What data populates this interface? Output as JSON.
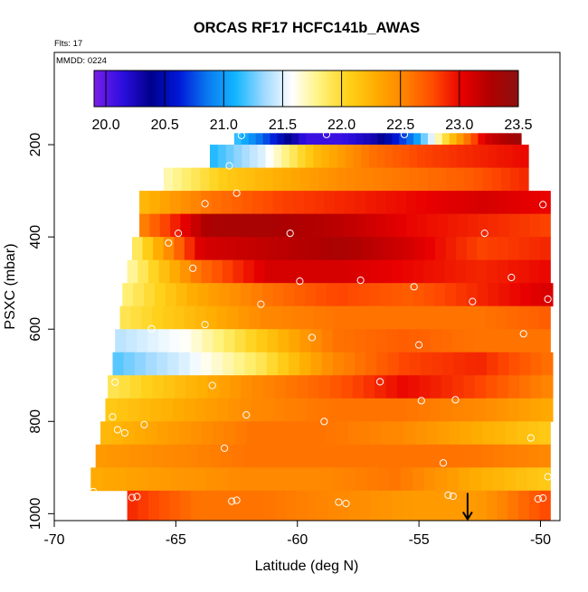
{
  "chart_data": {
    "type": "heatmap",
    "title": "ORCAS RF17 HCFC141b_AWAS",
    "annotations": {
      "flights": "Flts: 17",
      "date": "MMDD: 0224"
    },
    "xlabel": "Latitude (deg N)",
    "ylabel": "PSXC (mbar)",
    "xlim": [
      -70,
      -49.2
    ],
    "ylim": [
      1015,
      0
    ],
    "x_ticks": [
      -70,
      -65,
      -60,
      -55,
      -50
    ],
    "y_ticks": [
      200,
      400,
      600,
      800,
      1000
    ],
    "colorbar": {
      "min": 19.9,
      "max": 23.5,
      "ticks": [
        20.0,
        20.5,
        21.0,
        21.5,
        22.0,
        22.5,
        23.0,
        23.5
      ],
      "colors": [
        "#7a1fe8",
        "#2d0ee0",
        "#00008c",
        "#0018d8",
        "#0a78f0",
        "#12b6ff",
        "#9ed8ff",
        "#ffffff",
        "#fff27a",
        "#ffd11a",
        "#ffab00",
        "#ff8200",
        "#ff4a00",
        "#e80000",
        "#b00000",
        "#8b1010"
      ]
    },
    "bands": [
      {
        "p_top": 175,
        "p_bot": 200,
        "lat_start": -62.6,
        "lat_end": -50.8,
        "values": [
          21.2,
          20.7,
          20.1,
          20.1,
          20.3,
          20.9,
          22.1,
          23.1,
          23.4
        ]
      },
      {
        "p_top": 200,
        "p_bot": 250,
        "lat_start": -63.6,
        "lat_end": -50.5,
        "values": [
          21.1,
          21.5,
          22.2,
          22.6,
          22.8,
          22.9,
          23.0
        ]
      },
      {
        "p_top": 250,
        "p_bot": 300,
        "lat_start": -65.5,
        "lat_end": -50.5,
        "values": [
          21.7,
          22.1,
          22.3,
          22.5,
          22.6,
          22.7,
          22.9
        ]
      },
      {
        "p_top": 300,
        "p_bot": 350,
        "lat_start": -66.5,
        "lat_end": -49.6,
        "values": [
          22.2,
          22.6,
          22.8,
          22.9,
          23.0,
          23.1,
          23.0
        ]
      },
      {
        "p_top": 350,
        "p_bot": 400,
        "lat_start": -66.5,
        "lat_end": -49.6,
        "values": [
          22.5,
          23.3,
          23.3,
          23.2,
          23.0,
          22.9,
          22.8
        ]
      },
      {
        "p_top": 400,
        "p_bot": 450,
        "lat_start": -66.8,
        "lat_end": -49.6,
        "values": [
          21.8,
          23.1,
          23.2,
          23.3,
          23.1,
          22.8,
          22.9
        ]
      },
      {
        "p_top": 450,
        "p_bot": 500,
        "lat_start": -67.0,
        "lat_end": -49.6,
        "values": [
          21.7,
          22.6,
          23.1,
          23.1,
          23.0,
          22.9,
          23.0
        ]
      },
      {
        "p_top": 500,
        "p_bot": 550,
        "lat_start": -67.2,
        "lat_end": -49.5,
        "values": [
          21.8,
          22.3,
          22.6,
          22.8,
          22.7,
          22.9,
          23.1
        ]
      },
      {
        "p_top": 550,
        "p_bot": 600,
        "lat_start": -67.3,
        "lat_end": -49.6,
        "values": [
          21.9,
          22.2,
          22.5,
          22.6,
          22.6,
          22.6,
          22.7
        ]
      },
      {
        "p_top": 600,
        "p_bot": 650,
        "lat_start": -67.5,
        "lat_end": -49.6,
        "values": [
          21.4,
          21.6,
          22.1,
          22.6,
          22.7,
          22.6,
          22.6
        ]
      },
      {
        "p_top": 650,
        "p_bot": 700,
        "lat_start": -67.6,
        "lat_end": -49.5,
        "values": [
          21.2,
          21.5,
          21.9,
          22.5,
          22.8,
          22.9,
          22.6
        ]
      },
      {
        "p_top": 700,
        "p_bot": 750,
        "lat_start": -67.8,
        "lat_end": -49.5,
        "values": [
          21.9,
          22.2,
          22.5,
          22.7,
          23.0,
          22.8,
          22.5
        ]
      },
      {
        "p_top": 750,
        "p_bot": 800,
        "lat_start": -67.9,
        "lat_end": -49.5,
        "values": [
          22.1,
          22.3,
          22.5,
          22.6,
          22.6,
          22.5,
          22.3
        ]
      },
      {
        "p_top": 800,
        "p_bot": 850,
        "lat_start": -68.1,
        "lat_end": -49.6,
        "values": [
          22.2,
          22.4,
          22.6,
          22.6,
          22.5,
          22.3,
          22.1
        ]
      },
      {
        "p_top": 850,
        "p_bot": 900,
        "lat_start": -68.3,
        "lat_end": -49.6,
        "values": [
          22.4,
          22.5,
          22.6,
          22.6,
          22.6,
          22.6,
          22.5
        ]
      },
      {
        "p_top": 900,
        "p_bot": 950,
        "lat_start": -68.5,
        "lat_end": -49.6,
        "values": [
          22.3,
          22.4,
          22.5,
          22.5,
          22.6,
          22.3,
          22.1
        ]
      },
      {
        "p_top": 950,
        "p_bot": 1015,
        "lat_start": -67.0,
        "lat_end": -49.6,
        "values": [
          22.9,
          22.6,
          22.6,
          22.5,
          22.4,
          22.4,
          22.8
        ]
      }
    ],
    "sample_points": [
      {
        "lat": -62.3,
        "p": 180
      },
      {
        "lat": -58.8,
        "p": 178
      },
      {
        "lat": -55.6,
        "p": 178
      },
      {
        "lat": -62.8,
        "p": 246
      },
      {
        "lat": -62.5,
        "p": 305
      },
      {
        "lat": -63.8,
        "p": 328
      },
      {
        "lat": -49.9,
        "p": 330
      },
      {
        "lat": -64.9,
        "p": 392
      },
      {
        "lat": -60.3,
        "p": 392
      },
      {
        "lat": -52.3,
        "p": 392
      },
      {
        "lat": -65.3,
        "p": 413
      },
      {
        "lat": -64.3,
        "p": 468
      },
      {
        "lat": -59.9,
        "p": 496
      },
      {
        "lat": -57.4,
        "p": 494
      },
      {
        "lat": -51.2,
        "p": 488
      },
      {
        "lat": -55.2,
        "p": 508
      },
      {
        "lat": -61.5,
        "p": 546
      },
      {
        "lat": -52.8,
        "p": 540
      },
      {
        "lat": -49.7,
        "p": 535
      },
      {
        "lat": -66.0,
        "p": 599
      },
      {
        "lat": -63.8,
        "p": 590
      },
      {
        "lat": -59.4,
        "p": 618
      },
      {
        "lat": -55.0,
        "p": 634
      },
      {
        "lat": -50.7,
        "p": 610
      },
      {
        "lat": -67.5,
        "p": 715
      },
      {
        "lat": -63.5,
        "p": 722
      },
      {
        "lat": -56.6,
        "p": 714
      },
      {
        "lat": -54.9,
        "p": 755
      },
      {
        "lat": -53.5,
        "p": 753
      },
      {
        "lat": -67.6,
        "p": 790
      },
      {
        "lat": -66.3,
        "p": 807
      },
      {
        "lat": -62.1,
        "p": 786
      },
      {
        "lat": -58.9,
        "p": 800
      },
      {
        "lat": -67.4,
        "p": 818
      },
      {
        "lat": -67.1,
        "p": 825
      },
      {
        "lat": -63.0,
        "p": 858
      },
      {
        "lat": -54.0,
        "p": 890
      },
      {
        "lat": -50.4,
        "p": 836
      },
      {
        "lat": -49.7,
        "p": 920
      },
      {
        "lat": -68.4,
        "p": 952
      },
      {
        "lat": -66.8,
        "p": 965
      },
      {
        "lat": -66.6,
        "p": 963
      },
      {
        "lat": -62.7,
        "p": 973
      },
      {
        "lat": -62.5,
        "p": 971
      },
      {
        "lat": -58.3,
        "p": 975
      },
      {
        "lat": -58.0,
        "p": 978
      },
      {
        "lat": -53.8,
        "p": 960
      },
      {
        "lat": -53.6,
        "p": 962
      },
      {
        "lat": -50.1,
        "p": 968
      },
      {
        "lat": -49.9,
        "p": 966
      }
    ],
    "arrow_marker": {
      "lat": -53.0,
      "p_from": 955,
      "p_to": 1012
    }
  }
}
